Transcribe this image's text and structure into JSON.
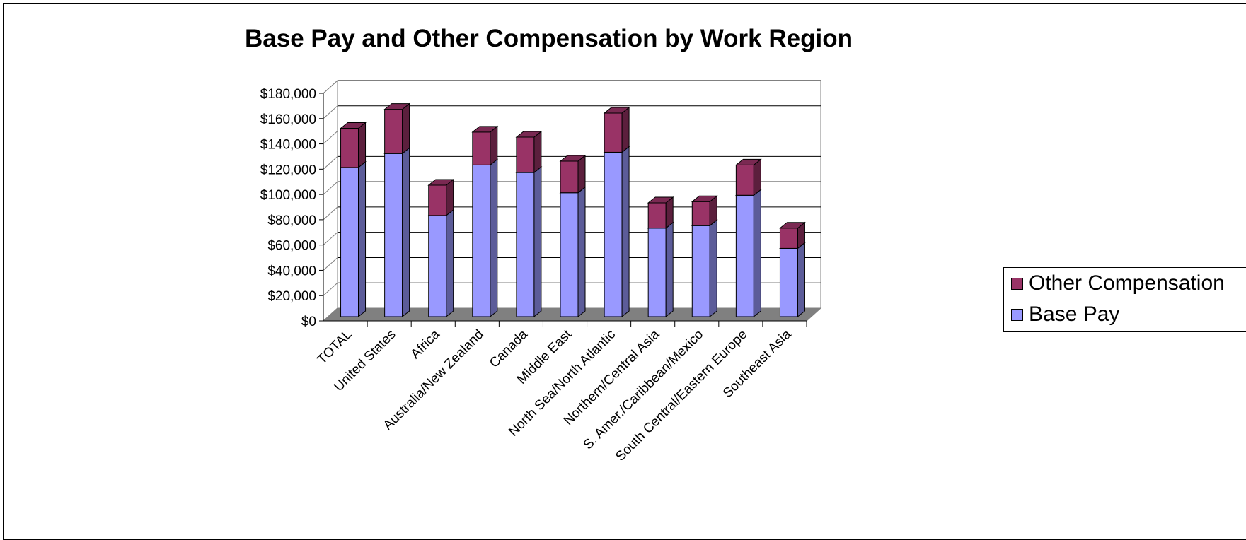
{
  "chart_data": {
    "type": "bar",
    "stacked": true,
    "three_d": true,
    "title": "Base Pay and Other Compensation by Work Region",
    "xlabel": "",
    "ylabel": "",
    "ylim": [
      0,
      180000
    ],
    "y_ticks": [
      "$0",
      "$20,000",
      "$40,000",
      "$60,000",
      "$80,000",
      "$100,000",
      "$120,000",
      "$140,000",
      "$160,000",
      "$180,000"
    ],
    "categories": [
      "TOTAL",
      "United States",
      "Africa",
      "Australia/New Zealand",
      "Canada",
      "Middle East",
      "North Sea/North Atlantic",
      "Northern/Central Asia",
      "S. Amer./Caribbean/Mexico",
      "South Central/Eastern Europe",
      "Southeast Asia"
    ],
    "series": [
      {
        "name": "Base Pay",
        "color": "#9999ff",
        "values": [
          118000,
          129000,
          80000,
          120000,
          114000,
          98000,
          130000,
          70000,
          72000,
          96000,
          54000
        ]
      },
      {
        "name": "Other Compensation",
        "color": "#993366",
        "values": [
          31000,
          35000,
          24000,
          26000,
          28000,
          25000,
          31000,
          20000,
          19000,
          24000,
          16000
        ]
      }
    ],
    "grid": true,
    "legend_position": "right"
  }
}
